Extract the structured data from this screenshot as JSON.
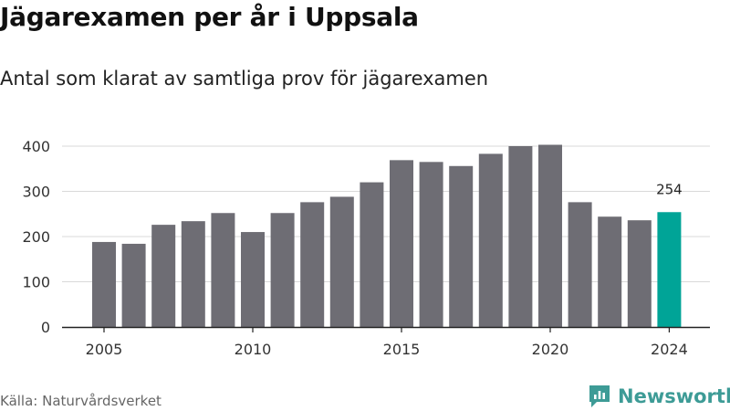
{
  "title": "Jägarexamen per år i Uppsala",
  "subtitle": "Antal som klarat av samtliga prov för jägarexamen",
  "source": "Källa: Naturvårdsverket",
  "brand": "Newsworthy",
  "colors": {
    "bar": "#6e6d74",
    "highlight": "#00a497",
    "grid": "#d9d9d9",
    "brand": "#3d9b96"
  },
  "chart_data": {
    "type": "bar",
    "categories": [
      "2005",
      "2006",
      "2007",
      "2008",
      "2009",
      "2010",
      "2011",
      "2012",
      "2013",
      "2014",
      "2015",
      "2016",
      "2017",
      "2018",
      "2019",
      "2020",
      "2021",
      "2022",
      "2023",
      "2024"
    ],
    "values": [
      188,
      184,
      226,
      234,
      252,
      210,
      252,
      276,
      288,
      320,
      369,
      365,
      356,
      383,
      400,
      403,
      276,
      244,
      236,
      254
    ],
    "highlight_category": "2024",
    "data_labels": [
      {
        "category": "2024",
        "text": "254"
      }
    ],
    "ylim": [
      0,
      400
    ],
    "yticks": [
      0,
      100,
      200,
      300,
      400
    ],
    "xticks": [
      "2005",
      "2010",
      "2015",
      "2020",
      "2024"
    ],
    "grid": true,
    "xlabel": "",
    "ylabel": ""
  }
}
